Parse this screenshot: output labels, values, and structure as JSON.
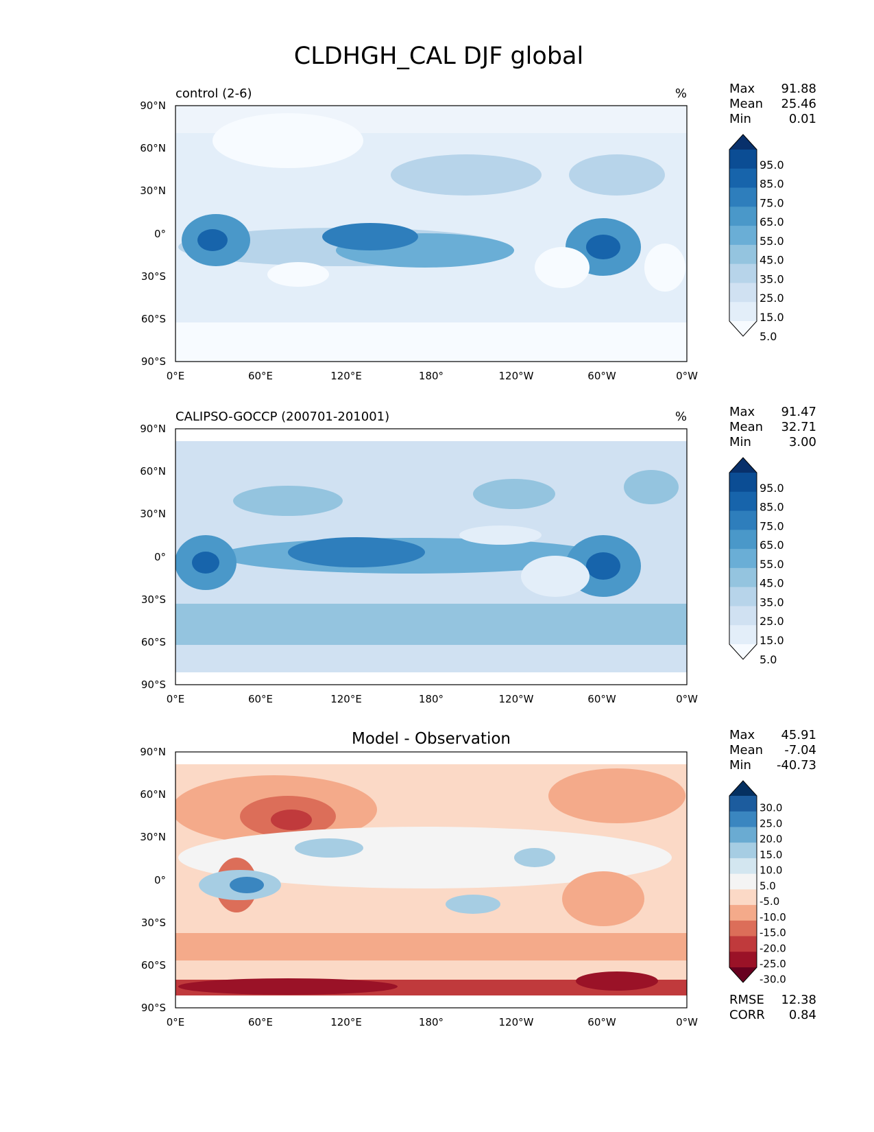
{
  "figure": {
    "title": "CLDHGH_CAL DJF global"
  },
  "chart_data": [
    {
      "type": "heatmap",
      "title": "control (2-6)",
      "units": "%",
      "xticks": [
        "0°E",
        "60°E",
        "120°E",
        "180°",
        "120°W",
        "60°W",
        "0°W"
      ],
      "yticks": [
        "90°N",
        "60°N",
        "30°N",
        "0°",
        "30°S",
        "60°S",
        "90°S"
      ],
      "xlim": [
        0,
        360
      ],
      "ylim": [
        -90,
        90
      ],
      "stats": [
        {
          "label": "Max",
          "value": "91.88"
        },
        {
          "label": "Mean",
          "value": "25.46"
        },
        {
          "label": "Min",
          "value": "0.01"
        }
      ],
      "colorbar": {
        "labels": [
          "95.0",
          "85.0",
          "75.0",
          "65.0",
          "55.0",
          "45.0",
          "35.0",
          "25.0",
          "15.0",
          "5.0"
        ],
        "colors": [
          "#08306b",
          "#0b4d94",
          "#1764ab",
          "#2e7ebc",
          "#4a98c9",
          "#6aaed6",
          "#94c4df",
          "#b7d4ea",
          "#d0e1f2",
          "#e3eef9",
          "#f7fbff"
        ]
      }
    },
    {
      "type": "heatmap",
      "title": "CALIPSO-GOCCP (200701-201001)",
      "units": "%",
      "xticks": [
        "0°E",
        "60°E",
        "120°E",
        "180°",
        "120°W",
        "60°W",
        "0°W"
      ],
      "yticks": [
        "90°N",
        "60°N",
        "30°N",
        "0°",
        "30°S",
        "60°S",
        "90°S"
      ],
      "xlim": [
        0,
        360
      ],
      "ylim": [
        -90,
        90
      ],
      "stats": [
        {
          "label": "Max",
          "value": "91.47"
        },
        {
          "label": "Mean",
          "value": "32.71"
        },
        {
          "label": "Min",
          "value": "3.00"
        }
      ],
      "colorbar": {
        "labels": [
          "95.0",
          "85.0",
          "75.0",
          "65.0",
          "55.0",
          "45.0",
          "35.0",
          "25.0",
          "15.0",
          "5.0"
        ],
        "colors": [
          "#08306b",
          "#0b4d94",
          "#1764ab",
          "#2e7ebc",
          "#4a98c9",
          "#6aaed6",
          "#94c4df",
          "#b7d4ea",
          "#d0e1f2",
          "#e3eef9",
          "#f7fbff"
        ]
      }
    },
    {
      "type": "heatmap",
      "title": "Model - Observation",
      "units": "",
      "xticks": [
        "0°E",
        "60°E",
        "120°E",
        "180°",
        "120°W",
        "60°W",
        "0°W"
      ],
      "yticks": [
        "90°N",
        "60°N",
        "30°N",
        "0°",
        "30°S",
        "60°S",
        "90°S"
      ],
      "xlim": [
        0,
        360
      ],
      "ylim": [
        -90,
        90
      ],
      "stats": [
        {
          "label": "Max",
          "value": "45.91"
        },
        {
          "label": "Mean",
          "value": "-7.04"
        },
        {
          "label": "Min",
          "value": "-40.73"
        }
      ],
      "metrics": [
        {
          "label": "RMSE",
          "value": "12.38"
        },
        {
          "label": "CORR",
          "value": "0.84"
        }
      ],
      "colorbar": {
        "labels": [
          "30.0",
          "25.0",
          "20.0",
          "15.0",
          "10.0",
          "5.0",
          "-5.0",
          "-10.0",
          "-15.0",
          "-20.0",
          "-25.0",
          "-30.0"
        ],
        "colors": [
          "#053061",
          "#1c5c9e",
          "#3a86c0",
          "#6aabd2",
          "#a6cde3",
          "#d3e6f0",
          "#f4f4f4",
          "#fbd9c6",
          "#f4aa8a",
          "#dc6e59",
          "#c03a3c",
          "#9a1227",
          "#67001f"
        ]
      }
    }
  ]
}
